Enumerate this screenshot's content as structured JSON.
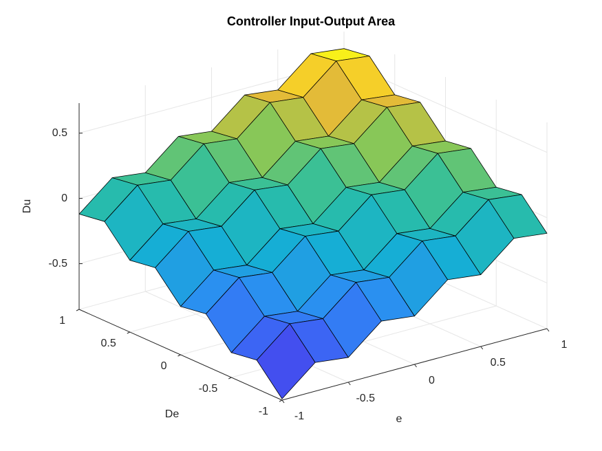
{
  "chart_data": {
    "type": "surface",
    "title": "Controller Input-Output Area",
    "xlabel": "e",
    "ylabel": "De",
    "zlabel": "Du",
    "x": [
      -1,
      -0.75,
      -0.5,
      -0.25,
      0,
      0.25,
      0.5,
      0.75,
      1
    ],
    "y": [
      -1,
      -0.75,
      -0.5,
      -0.25,
      0,
      0.25,
      0.5,
      0.75,
      1
    ],
    "z": [
      [
        -0.84,
        -0.63,
        -0.66,
        -0.45,
        -0.48,
        -0.27,
        -0.3,
        -0.09,
        -0.12
      ],
      [
        -0.63,
        -0.42,
        -0.45,
        -0.24,
        -0.27,
        -0.06,
        -0.09,
        0.12,
        0.09
      ],
      [
        -0.66,
        -0.45,
        -0.48,
        -0.27,
        -0.3,
        -0.09,
        -0.12,
        0.09,
        0.06
      ],
      [
        -0.45,
        -0.24,
        -0.27,
        -0.06,
        -0.09,
        0.12,
        0.09,
        0.3,
        0.27
      ],
      [
        -0.48,
        -0.27,
        -0.3,
        -0.09,
        -0.12,
        0.09,
        0.06,
        0.27,
        0.24
      ],
      [
        -0.27,
        -0.06,
        -0.09,
        0.12,
        0.09,
        0.3,
        0.27,
        0.48,
        0.45
      ],
      [
        -0.3,
        -0.09,
        -0.12,
        0.09,
        0.06,
        0.27,
        0.24,
        0.45,
        0.42
      ],
      [
        -0.09,
        0.12,
        0.09,
        0.3,
        0.27,
        0.48,
        0.45,
        0.66,
        0.63
      ],
      [
        -0.12,
        0.09,
        0.06,
        0.27,
        0.24,
        0.45,
        0.42,
        0.63,
        0.6
      ]
    ],
    "xlim": [
      -1,
      1
    ],
    "ylim": [
      -1,
      1
    ],
    "zlim": [
      -0.85,
      0.73
    ],
    "xticks": [
      -1,
      -0.5,
      0,
      0.5,
      1
    ],
    "yticks": [
      -1,
      -0.5,
      0,
      0.5,
      1
    ],
    "zticks": [
      -0.5,
      0,
      0.5
    ],
    "colormap": "parula",
    "edge_color": "#000000",
    "grid": true
  }
}
